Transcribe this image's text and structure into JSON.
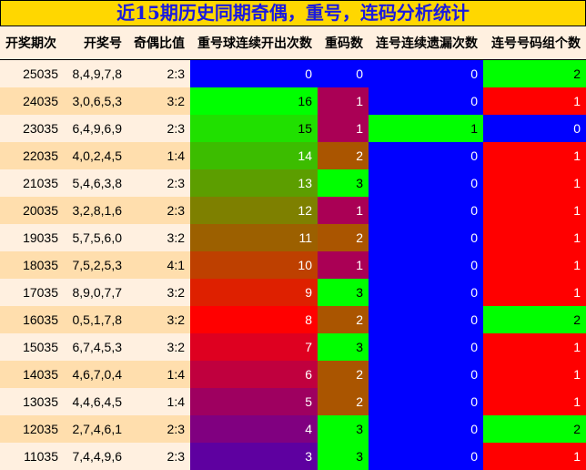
{
  "title": "近15期历史同期奇偶，重号，连码分析统计",
  "headers": [
    "开奖期次",
    "开奖号",
    "奇偶比值",
    "重号球连续开出次数",
    "重码数",
    "连号连续遗漏次数",
    "连号号码组个数"
  ],
  "rows": [
    {
      "period": "25035",
      "numbers": "8,4,9,7,8",
      "ratio": "2:3",
      "repeat_streak": "0",
      "repeat_streak_color": "#0000ff",
      "repeat_count": "0",
      "repeat_count_color": "#0000ff",
      "consec_miss": "0",
      "consec_miss_color": "#0000ff",
      "consec_groups": "2",
      "consec_groups_color": "#00ff00"
    },
    {
      "period": "24035",
      "numbers": "3,0,6,5,3",
      "ratio": "3:2",
      "repeat_streak": "16",
      "repeat_streak_color": "#00ff00",
      "repeat_count": "1",
      "repeat_count_color": "#aa0055",
      "consec_miss": "0",
      "consec_miss_color": "#0000ff",
      "consec_groups": "1",
      "consec_groups_color": "#ff0000"
    },
    {
      "period": "23035",
      "numbers": "6,4,9,6,9",
      "ratio": "2:3",
      "repeat_streak": "15",
      "repeat_streak_color": "#20e000",
      "repeat_count": "1",
      "repeat_count_color": "#aa0055",
      "consec_miss": "1",
      "consec_miss_color": "#00ff00",
      "consec_groups": "0",
      "consec_groups_color": "#0000ff"
    },
    {
      "period": "22035",
      "numbers": "4,0,2,4,5",
      "ratio": "1:4",
      "repeat_streak": "14",
      "repeat_streak_color": "#3cbd00",
      "repeat_count": "2",
      "repeat_count_color": "#aa5500",
      "consec_miss": "0",
      "consec_miss_color": "#0000ff",
      "consec_groups": "1",
      "consec_groups_color": "#ff0000"
    },
    {
      "period": "21035",
      "numbers": "5,4,6,3,8",
      "ratio": "2:3",
      "repeat_streak": "13",
      "repeat_streak_color": "#5c9e00",
      "repeat_count": "3",
      "repeat_count_color": "#00ff00",
      "consec_miss": "0",
      "consec_miss_color": "#0000ff",
      "consec_groups": "1",
      "consec_groups_color": "#ff0000"
    },
    {
      "period": "20035",
      "numbers": "3,2,8,1,6",
      "ratio": "2:3",
      "repeat_streak": "12",
      "repeat_streak_color": "#7e8000",
      "repeat_count": "1",
      "repeat_count_color": "#aa0055",
      "consec_miss": "0",
      "consec_miss_color": "#0000ff",
      "consec_groups": "1",
      "consec_groups_color": "#ff0000"
    },
    {
      "period": "19035",
      "numbers": "5,7,5,6,0",
      "ratio": "3:2",
      "repeat_streak": "11",
      "repeat_streak_color": "#9c6000",
      "repeat_count": "2",
      "repeat_count_color": "#aa5500",
      "consec_miss": "0",
      "consec_miss_color": "#0000ff",
      "consec_groups": "1",
      "consec_groups_color": "#ff0000"
    },
    {
      "period": "18035",
      "numbers": "7,5,2,5,3",
      "ratio": "4:1",
      "repeat_streak": "10",
      "repeat_streak_color": "#be4000",
      "repeat_count": "1",
      "repeat_count_color": "#aa0055",
      "consec_miss": "0",
      "consec_miss_color": "#0000ff",
      "consec_groups": "1",
      "consec_groups_color": "#ff0000"
    },
    {
      "period": "17035",
      "numbers": "8,9,0,7,7",
      "ratio": "3:2",
      "repeat_streak": "9",
      "repeat_streak_color": "#de2000",
      "repeat_count": "3",
      "repeat_count_color": "#00ff00",
      "consec_miss": "0",
      "consec_miss_color": "#0000ff",
      "consec_groups": "1",
      "consec_groups_color": "#ff0000"
    },
    {
      "period": "16035",
      "numbers": "0,5,1,7,8",
      "ratio": "3:2",
      "repeat_streak": "8",
      "repeat_streak_color": "#ff0000",
      "repeat_count": "2",
      "repeat_count_color": "#aa5500",
      "consec_miss": "0",
      "consec_miss_color": "#0000ff",
      "consec_groups": "2",
      "consec_groups_color": "#00ff00"
    },
    {
      "period": "15035",
      "numbers": "6,7,4,5,3",
      "ratio": "3:2",
      "repeat_streak": "7",
      "repeat_streak_color": "#de0020",
      "repeat_count": "3",
      "repeat_count_color": "#00ff00",
      "consec_miss": "0",
      "consec_miss_color": "#0000ff",
      "consec_groups": "1",
      "consec_groups_color": "#ff0000"
    },
    {
      "period": "14035",
      "numbers": "4,6,7,0,4",
      "ratio": "1:4",
      "repeat_streak": "6",
      "repeat_streak_color": "#c0003e",
      "repeat_count": "2",
      "repeat_count_color": "#aa5500",
      "consec_miss": "0",
      "consec_miss_color": "#0000ff",
      "consec_groups": "1",
      "consec_groups_color": "#ff0000"
    },
    {
      "period": "13035",
      "numbers": "4,4,6,4,5",
      "ratio": "1:4",
      "repeat_streak": "5",
      "repeat_streak_color": "#9e0060",
      "repeat_count": "2",
      "repeat_count_color": "#aa5500",
      "consec_miss": "0",
      "consec_miss_color": "#0000ff",
      "consec_groups": "1",
      "consec_groups_color": "#ff0000"
    },
    {
      "period": "12035",
      "numbers": "2,7,4,6,1",
      "ratio": "2:3",
      "repeat_streak": "4",
      "repeat_streak_color": "#800080",
      "repeat_count": "3",
      "repeat_count_color": "#00ff00",
      "consec_miss": "0",
      "consec_miss_color": "#0000ff",
      "consec_groups": "2",
      "consec_groups_color": "#00ff00"
    },
    {
      "period": "11035",
      "numbers": "7,4,4,9,6",
      "ratio": "2:3",
      "repeat_streak": "3",
      "repeat_streak_color": "#5e00a0",
      "repeat_count": "3",
      "repeat_count_color": "#00ff00",
      "consec_miss": "0",
      "consec_miss_color": "#0000ff",
      "consec_groups": "1",
      "consec_groups_color": "#ff0000"
    }
  ]
}
